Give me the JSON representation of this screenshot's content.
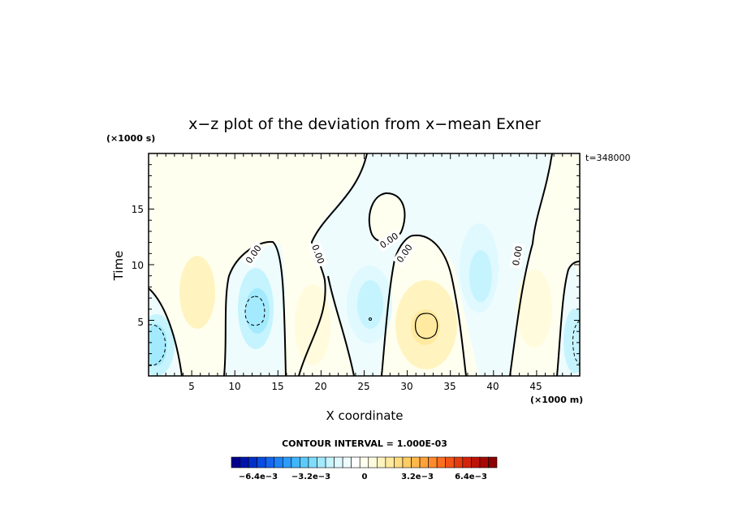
{
  "chart_data": {
    "type": "heatmap",
    "title": "x−z plot of the deviation from x−mean Exner",
    "xlabel": "X coordinate",
    "ylabel": "Time",
    "x_unit_label": "(×1000 m)",
    "y_unit_label": "(×1000 s)",
    "time_stamp": "t=348000",
    "xlim": [
      0,
      50
    ],
    "ylim": [
      0,
      20
    ],
    "x_ticks": [
      "5",
      "10",
      "15",
      "20",
      "25",
      "30",
      "35",
      "40",
      "45"
    ],
    "y_ticks": [
      "5",
      "10",
      "15"
    ],
    "zero_contour_label": "0.00",
    "contour_interval_text": "CONTOUR INTERVAL = 1.000E-03",
    "colorbar": {
      "labels": [
        "−6.4e−3",
        "−3.2e−3",
        "0",
        "3.2e−3",
        "6.4e−3"
      ],
      "colors": [
        "#00008b",
        "#0015ad",
        "#002fc8",
        "#0a4be0",
        "#1565ee",
        "#1f82f6",
        "#2d9cf9",
        "#40b5fb",
        "#5ccbfc",
        "#7fdcfd",
        "#a3eafe",
        "#c5f4fe",
        "#dff9fe",
        "#eefcfe",
        "#ffffff",
        "#fffff0",
        "#fffbdc",
        "#fff4c0",
        "#ffeaa0",
        "#ffdc80",
        "#ffcc63",
        "#ffb84c",
        "#ffa23a",
        "#ff8a2c",
        "#fb6f20",
        "#f25417",
        "#e53b10",
        "#d3240b",
        "#bd1207",
        "#a60803",
        "#8b0000"
      ]
    },
    "features": [
      {
        "kind": "negative anomaly",
        "x": 1.5,
        "t": 3.0,
        "value": -0.001
      },
      {
        "kind": "negative anomaly",
        "x": 12.5,
        "t": 5.5,
        "value": -0.001
      },
      {
        "kind": "negative anomaly",
        "x": 25.5,
        "t": 6.0,
        "value": -0.0005
      },
      {
        "kind": "positive anomaly",
        "x": 31.5,
        "t": 4.5,
        "value": 0.001
      },
      {
        "kind": "positive anomaly",
        "x": 20.0,
        "t": 4.0,
        "value": 0.0005
      },
      {
        "kind": "positive anomaly",
        "x": 5.5,
        "t": 7.0,
        "value": 0.0005
      },
      {
        "kind": "negative anomaly",
        "x": 39.0,
        "t": 9.0,
        "value": -0.0005
      },
      {
        "kind": "positive anomaly",
        "x": 44.0,
        "t": 7.0,
        "value": 0.0005
      },
      {
        "kind": "negative anomaly",
        "x": 49.0,
        "t": 3.0,
        "value": -0.001
      }
    ]
  }
}
